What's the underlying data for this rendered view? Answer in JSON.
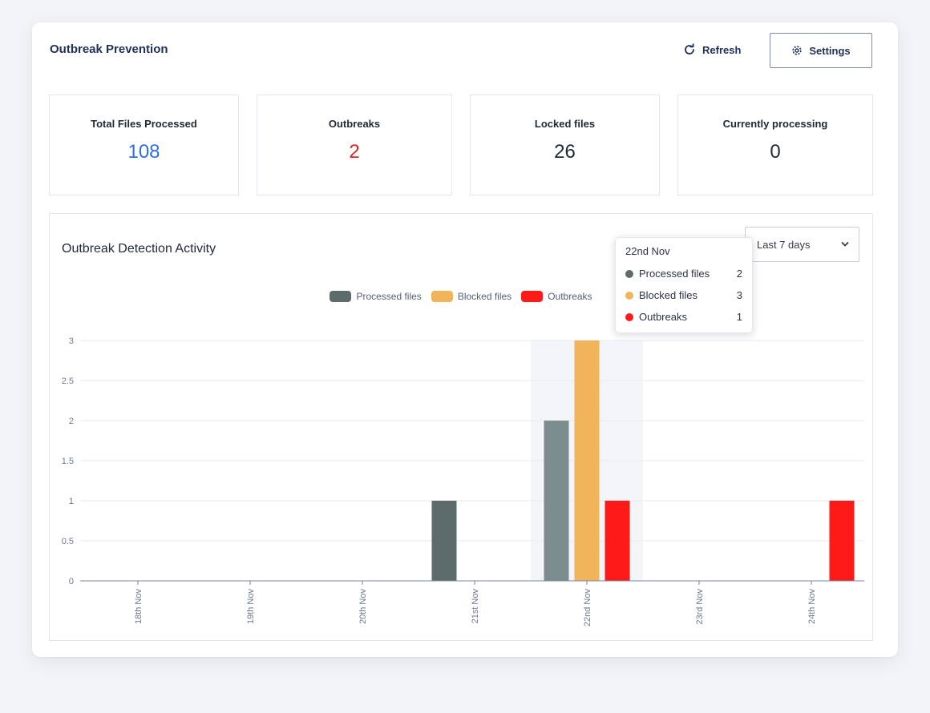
{
  "header": {
    "title": "Outbreak Prevention",
    "refresh_label": "Refresh",
    "settings_label": "Settings"
  },
  "stats": [
    {
      "label": "Total Files Processed",
      "value": "108",
      "color": "#2f6fe0"
    },
    {
      "label": "Outbreaks",
      "value": "2",
      "color": "#e02424"
    },
    {
      "label": "Locked files",
      "value": "26",
      "color": "#222a38"
    },
    {
      "label": "Currently processing",
      "value": "0",
      "color": "#222a38"
    }
  ],
  "chart_panel": {
    "title": "Outbreak Detection Activity",
    "range_selected": "Last 7 days"
  },
  "colors": {
    "processed": "#5d6b6b",
    "processed_hover": "#7b8d8e",
    "blocked": "#f0b45b",
    "outbreaks": "#ff1a1a"
  },
  "chart_data": {
    "type": "bar",
    "title": "Outbreak Detection Activity",
    "categories": [
      "18th Nov",
      "19th Nov",
      "20th Nov",
      "21st Nov",
      "22nd Nov",
      "23rd Nov",
      "24th Nov"
    ],
    "series": [
      {
        "name": "Processed files",
        "values": [
          0,
          0,
          0,
          1,
          2,
          0,
          0
        ]
      },
      {
        "name": "Blocked files",
        "values": [
          0,
          0,
          0,
          0,
          3,
          0,
          0
        ]
      },
      {
        "name": "Outbreaks",
        "values": [
          0,
          0,
          0,
          0,
          1,
          0,
          1
        ]
      }
    ],
    "yticks": [
      "0",
      "0.5",
      "1",
      "1.5",
      "2",
      "2.5",
      "3"
    ],
    "ylim": [
      0,
      3
    ],
    "grid": true,
    "legend": "top-center",
    "highlighted_category": "22nd Nov"
  },
  "tooltip": {
    "title": "22nd Nov",
    "rows": [
      {
        "name": "Processed files",
        "value": "2"
      },
      {
        "name": "Blocked files",
        "value": "3"
      },
      {
        "name": "Outbreaks",
        "value": "1"
      }
    ]
  }
}
